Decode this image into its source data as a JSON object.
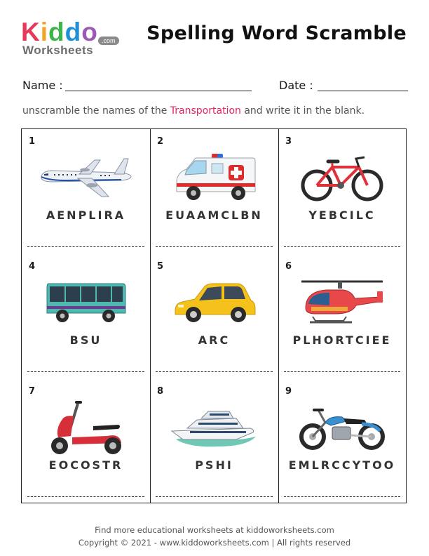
{
  "logo": {
    "kiddo_letters": [
      "K",
      "i",
      "d",
      "d",
      "o"
    ],
    "worksheets": "Worksheets",
    "com": ".com",
    "letter_colors": [
      "#e8385b",
      "#f2a524",
      "#3db54a",
      "#1e90d6",
      "#9b59b6"
    ]
  },
  "title": "Spelling Word Scramble",
  "fields": {
    "name_label": "Name :",
    "date_label": "Date :"
  },
  "instructions": {
    "before": "unscramble the names of the ",
    "highlight": "Transportation",
    "after": " and write it in the blank."
  },
  "items": [
    {
      "number": "1",
      "scrambled": "AENPLIRA",
      "icon": "airplane-icon"
    },
    {
      "number": "2",
      "scrambled": "EUAAMCLBN",
      "icon": "ambulance-icon"
    },
    {
      "number": "3",
      "scrambled": "YEBCILC",
      "icon": "bicycle-icon"
    },
    {
      "number": "4",
      "scrambled": "BSU",
      "icon": "bus-icon"
    },
    {
      "number": "5",
      "scrambled": "ARC",
      "icon": "car-icon"
    },
    {
      "number": "6",
      "scrambled": "PLHORTCIEE",
      "icon": "helicopter-icon"
    },
    {
      "number": "7",
      "scrambled": "EOCOSTR",
      "icon": "scooter-icon"
    },
    {
      "number": "8",
      "scrambled": "PSHI",
      "icon": "ship-icon"
    },
    {
      "number": "9",
      "scrambled": "EMLRCCYTOO",
      "icon": "motorcycle-icon"
    }
  ],
  "footer": {
    "line1": "Find more educational worksheets at kiddoworksheets.com",
    "line2": "Copyright © 2021 - www.kiddoworksheets.com  |  All rights reserved"
  }
}
